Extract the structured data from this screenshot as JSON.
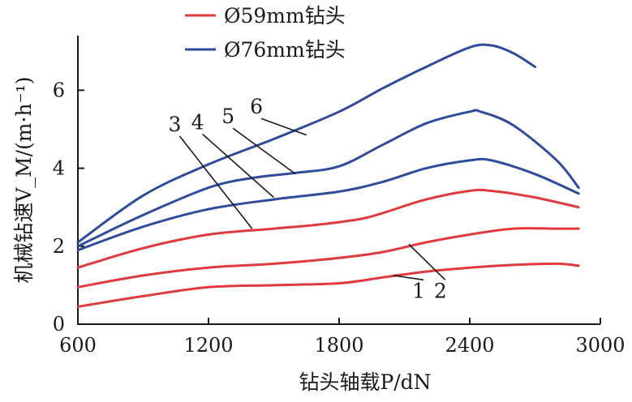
{
  "chart_data": {
    "type": "line",
    "xlabel": "钻头轴载P/dN",
    "ylabel": "机械钻速V_M/(m·h⁻¹)",
    "xlim": [
      600,
      3000
    ],
    "ylim": [
      0,
      7.4
    ],
    "xticks": [
      "600",
      "1200",
      "1800",
      "2400",
      "3000"
    ],
    "yticks": [
      "0",
      "2",
      "4",
      "6"
    ],
    "legend_position": "top",
    "legend": [
      {
        "label": "Ø59mm钻头",
        "color": "#e0393e"
      },
      {
        "label": "Ø76mm钻头",
        "color": "#2e4b9c"
      }
    ],
    "series": [
      {
        "name": "1",
        "group": 0,
        "color": "#e0393e",
        "x": [
          600,
          900,
          1200,
          1500,
          1800,
          2000,
          2200,
          2400,
          2600,
          2800,
          2900
        ],
        "y": [
          0.45,
          0.72,
          0.95,
          1.0,
          1.05,
          1.2,
          1.35,
          1.45,
          1.52,
          1.55,
          1.5
        ]
      },
      {
        "name": "2",
        "group": 0,
        "color": "#e0393e",
        "x": [
          600,
          900,
          1200,
          1500,
          1800,
          2000,
          2200,
          2400,
          2600,
          2800,
          2900
        ],
        "y": [
          0.95,
          1.25,
          1.45,
          1.55,
          1.7,
          1.85,
          2.1,
          2.3,
          2.45,
          2.45,
          2.45
        ]
      },
      {
        "name": "3",
        "group": 0,
        "color": "#e0393e",
        "x": [
          600,
          900,
          1200,
          1500,
          1700,
          1900,
          2000,
          2200,
          2400,
          2500,
          2700,
          2900
        ],
        "y": [
          1.45,
          1.95,
          2.3,
          2.45,
          2.55,
          2.7,
          2.85,
          3.2,
          3.42,
          3.42,
          3.25,
          3.0
        ]
      },
      {
        "name": "4",
        "group": 1,
        "color": "#2e4b9c",
        "x": [
          600,
          900,
          1200,
          1500,
          1800,
          2000,
          2200,
          2400,
          2500,
          2700,
          2900
        ],
        "y": [
          1.9,
          2.5,
          2.95,
          3.2,
          3.4,
          3.65,
          4.0,
          4.2,
          4.2,
          3.85,
          3.35
        ]
      },
      {
        "name": "5",
        "group": 1,
        "color": "#2e4b9c",
        "x": [
          600,
          900,
          1200,
          1400,
          1600,
          1800,
          2000,
          2200,
          2400,
          2450,
          2600,
          2800,
          2900
        ],
        "y": [
          2.0,
          2.8,
          3.5,
          3.75,
          3.88,
          4.05,
          4.6,
          5.15,
          5.45,
          5.45,
          5.1,
          4.2,
          3.5
        ]
      },
      {
        "name": "6",
        "group": 1,
        "color": "#2e4b9c",
        "x": [
          600,
          900,
          1200,
          1500,
          1800,
          2000,
          2200,
          2400,
          2500,
          2600,
          2700
        ],
        "y": [
          2.1,
          3.3,
          4.1,
          4.75,
          5.45,
          6.05,
          6.6,
          7.1,
          7.15,
          6.95,
          6.6
        ]
      }
    ],
    "curve_labels": [
      {
        "text": "1",
        "x": 2165,
        "y": 0.68,
        "anchor_x": 2050,
        "anchor_y": 1.25
      },
      {
        "text": "2",
        "x": 2265,
        "y": 0.68,
        "anchor_x": 2120,
        "anchor_y": 2.05
      },
      {
        "text": "3",
        "x": 1045,
        "y": 4.95,
        "anchor_x": 1400,
        "anchor_y": 2.45
      },
      {
        "text": "4",
        "x": 1150,
        "y": 5.0,
        "anchor_x": 1500,
        "anchor_y": 3.25
      },
      {
        "text": "5",
        "x": 1290,
        "y": 5.15,
        "anchor_x": 1600,
        "anchor_y": 3.85
      },
      {
        "text": "6",
        "x": 1420,
        "y": 5.4,
        "anchor_x": 1650,
        "anchor_y": 4.85
      }
    ]
  }
}
